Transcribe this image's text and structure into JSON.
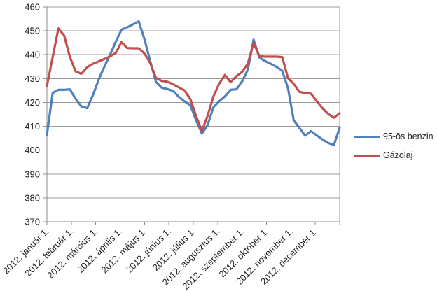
{
  "chart_data": {
    "type": "line",
    "title": "",
    "x_description": "2012, heti adatok (weeks 1-52)",
    "month_tick_labels": [
      "2012. január 1.",
      "2012. február 1.",
      "2012. március 1.",
      "2012. április 1.",
      "2012. május 1.",
      "2012. június 1.",
      "2012. július 1.",
      "2012. augusztus 1.",
      "2012. szeptember 1.",
      "2012. október 1.",
      "2012. november 1.",
      "2012. december 1."
    ],
    "y_ticks": [
      370,
      380,
      390,
      400,
      410,
      420,
      430,
      440,
      450,
      460
    ],
    "ylim": [
      370,
      460
    ],
    "grid": "horizontal gridlines only",
    "legend_position": "right",
    "series": [
      {
        "name": "95-ös benzin",
        "color": "#4F81BD",
        "values": [
          406.5,
          424,
          425.3,
          425.3,
          425.5,
          421.5,
          418.3,
          417.6,
          423,
          429.5,
          435,
          440,
          445.5,
          450.5,
          451.5,
          452.7,
          454,
          446.5,
          437.3,
          428.6,
          426.2,
          425.6,
          424.8,
          422.3,
          420.4,
          418.8,
          412.5,
          407,
          410.5,
          418,
          420.5,
          422.5,
          425.3,
          425.5,
          428.8,
          433.8,
          446.3,
          438.9,
          437.3,
          436.2,
          434.9,
          433.3,
          426,
          412.5,
          409.3,
          406.1,
          408,
          406.2,
          404.5,
          403,
          402.2,
          409.5
        ]
      },
      {
        "name": "Gázolaj",
        "color": "#C0504D",
        "values": [
          427,
          439,
          451,
          448,
          439,
          433,
          432,
          434.8,
          436.2,
          437.2,
          438.2,
          439.3,
          440.8,
          445.3,
          442.8,
          442.7,
          442.7,
          440.5,
          436.5,
          430.3,
          429,
          428.7,
          427.6,
          426.3,
          425,
          421.3,
          414.3,
          408,
          414.5,
          422.5,
          427.8,
          431.5,
          428.5,
          431,
          432.8,
          436.3,
          445,
          439.4,
          439.2,
          439.2,
          439.2,
          439,
          430.2,
          427.8,
          424.4,
          424,
          423.7,
          420.6,
          417.6,
          415.2,
          413.6,
          415.5
        ]
      }
    ]
  },
  "colors": {
    "grid": "#9c9c9c",
    "axis": "#8c8c8c",
    "label_text": "#1f1f1f",
    "background": "#ffffff"
  }
}
